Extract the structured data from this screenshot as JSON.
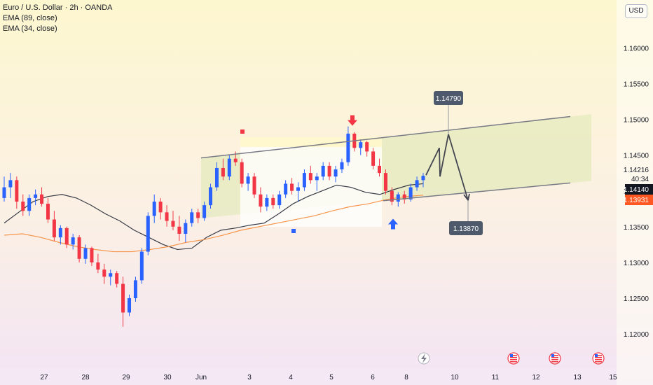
{
  "legend": {
    "title": "Euro / U.S. Dollar · 2h · OANDA",
    "ema_slow": "EMA (89, close)",
    "ema_fast": "EMA (34, close)"
  },
  "currency_button": "USD",
  "colors": {
    "up": "#2962ff",
    "down": "#f23645",
    "ema_slow": "#363a45",
    "ema_fast": "#f7954a",
    "channel_line": "#787b86",
    "callout": "#4e5a6b",
    "price_tag": "#131722",
    "ema_tag": "#ff5722"
  },
  "chart_data": {
    "type": "candlestick",
    "x_tick_labels": [
      "27",
      "28",
      "29",
      "30",
      "Jun",
      "3",
      "4",
      "5",
      "6",
      "8",
      "10",
      "11",
      "12",
      "13",
      "15"
    ],
    "y_ticks": [
      "1.16000",
      "1.15500",
      "1.15000",
      "1.14500",
      "1.14000",
      "1.13500",
      "1.13000",
      "1.12500",
      "1.12000"
    ],
    "ylim": [
      1.1158,
      1.1657
    ],
    "ohlc": [
      [
        1.139,
        1.142,
        1.1385,
        1.1405
      ],
      [
        1.1405,
        1.1425,
        1.139,
        1.1415
      ],
      [
        1.1415,
        1.142,
        1.1375,
        1.1385
      ],
      [
        1.1385,
        1.1395,
        1.1365,
        1.1372
      ],
      [
        1.1372,
        1.1395,
        1.1365,
        1.139
      ],
      [
        1.139,
        1.1402,
        1.138,
        1.1395
      ],
      [
        1.1395,
        1.1405,
        1.1378,
        1.1382
      ],
      [
        1.1382,
        1.139,
        1.1355,
        1.136
      ],
      [
        1.136,
        1.1372,
        1.133,
        1.1335
      ],
      [
        1.1335,
        1.1352,
        1.1325,
        1.1348
      ],
      [
        1.1348,
        1.135,
        1.132,
        1.1325
      ],
      [
        1.1325,
        1.134,
        1.1318,
        1.1335
      ],
      [
        1.1335,
        1.1338,
        1.13,
        1.1305
      ],
      [
        1.1305,
        1.1325,
        1.1298,
        1.132
      ],
      [
        1.132,
        1.1322,
        1.1295,
        1.13
      ],
      [
        1.13,
        1.1312,
        1.1285,
        1.129
      ],
      [
        1.129,
        1.1298,
        1.127,
        1.128
      ],
      [
        1.128,
        1.129,
        1.1268,
        1.1285
      ],
      [
        1.1285,
        1.1288,
        1.1265,
        1.127
      ],
      [
        1.127,
        1.128,
        1.121,
        1.123
      ],
      [
        1.123,
        1.1255,
        1.1225,
        1.125
      ],
      [
        1.125,
        1.128,
        1.1245,
        1.1275
      ],
      [
        1.1275,
        1.132,
        1.127,
        1.1315
      ],
      [
        1.1315,
        1.137,
        1.131,
        1.1365
      ],
      [
        1.1365,
        1.1395,
        1.1355,
        1.1385
      ],
      [
        1.1385,
        1.139,
        1.136,
        1.137
      ],
      [
        1.137,
        1.138,
        1.135,
        1.1358
      ],
      [
        1.1358,
        1.1372,
        1.1345,
        1.135
      ],
      [
        1.135,
        1.1365,
        1.133,
        1.134
      ],
      [
        1.134,
        1.136,
        1.1328,
        1.1355
      ],
      [
        1.1355,
        1.1375,
        1.135,
        1.137
      ],
      [
        1.137,
        1.1375,
        1.1355,
        1.1362
      ],
      [
        1.1362,
        1.1385,
        1.1358,
        1.138
      ],
      [
        1.138,
        1.141,
        1.1375,
        1.1405
      ],
      [
        1.1405,
        1.144,
        1.14,
        1.1432
      ],
      [
        1.1432,
        1.1445,
        1.1415,
        1.142
      ],
      [
        1.142,
        1.145,
        1.1415,
        1.1445
      ],
      [
        1.1445,
        1.1455,
        1.1435,
        1.144
      ],
      [
        1.144,
        1.1445,
        1.1405,
        1.141
      ],
      [
        1.141,
        1.1425,
        1.14,
        1.142
      ],
      [
        1.142,
        1.1425,
        1.139,
        1.1395
      ],
      [
        1.1395,
        1.1405,
        1.137,
        1.1378
      ],
      [
        1.1378,
        1.1395,
        1.1372,
        1.139
      ],
      [
        1.139,
        1.1395,
        1.1375,
        1.138
      ],
      [
        1.138,
        1.14,
        1.1375,
        1.1395
      ],
      [
        1.1395,
        1.1415,
        1.139,
        1.141
      ],
      [
        1.141,
        1.1418,
        1.1395,
        1.14
      ],
      [
        1.14,
        1.1412,
        1.1385,
        1.1405
      ],
      [
        1.1405,
        1.143,
        1.14,
        1.1425
      ],
      [
        1.1425,
        1.1435,
        1.141,
        1.1415
      ],
      [
        1.1415,
        1.1425,
        1.14,
        1.142
      ],
      [
        1.142,
        1.144,
        1.1415,
        1.1435
      ],
      [
        1.1435,
        1.144,
        1.1415,
        1.142
      ],
      [
        1.142,
        1.1435,
        1.1412,
        1.143
      ],
      [
        1.143,
        1.1445,
        1.1425,
        1.144
      ],
      [
        1.144,
        1.149,
        1.1435,
        1.148
      ],
      [
        1.148,
        1.1482,
        1.1455,
        1.146
      ],
      [
        1.146,
        1.1472,
        1.145,
        1.1468
      ],
      [
        1.1468,
        1.147,
        1.1448,
        1.1455
      ],
      [
        1.1455,
        1.146,
        1.143,
        1.1435
      ],
      [
        1.1435,
        1.1445,
        1.142,
        1.1425
      ],
      [
        1.1425,
        1.143,
        1.1395,
        1.14
      ],
      [
        1.14,
        1.1405,
        1.138,
        1.1385
      ],
      [
        1.1385,
        1.1398,
        1.1378,
        1.1395
      ],
      [
        1.1395,
        1.14,
        1.1382,
        1.1388
      ],
      [
        1.1388,
        1.141,
        1.1385,
        1.1405
      ],
      [
        1.1405,
        1.142,
        1.14,
        1.1415
      ],
      [
        1.1415,
        1.1425,
        1.1405,
        1.1421
      ]
    ],
    "ema_89": [
      1.1355,
      1.137,
      1.1385,
      1.1392,
      1.1395,
      1.139,
      1.138,
      1.1368,
      1.1358,
      1.1345,
      1.1335,
      1.1325,
      1.1318,
      1.132,
      1.1335,
      1.1345,
      1.1348,
      1.1352,
      1.1355,
      1.1368,
      1.1382,
      1.1392,
      1.14,
      1.1408,
      1.1405,
      1.1398,
      1.1395,
      1.1402,
      1.1408,
      1.141
    ],
    "ema_34": [
      1.1338,
      1.134,
      1.1335,
      1.1328,
      1.1322,
      1.1318,
      1.1315,
      1.1315,
      1.1318,
      1.1322,
      1.1328,
      1.1332,
      1.1338,
      1.1345,
      1.135,
      1.1355,
      1.136,
      1.1365,
      1.1372,
      1.1378,
      1.1382,
      1.1388,
      1.1392,
      1.1394
    ],
    "channel_upper": {
      "from": [
        1.1446,
        "Jun"
      ],
      "to": [
        1.1505,
        "13"
      ]
    },
    "channel_lower": {
      "from": [
        1.1362,
        "Jun"
      ],
      "to": [
        1.1412,
        "13"
      ]
    },
    "projection_path": [
      1.1422,
      1.146,
      1.142,
      1.1479,
      1.1387
    ],
    "targets": [
      {
        "label": "1.14790",
        "value": 1.1479
      },
      {
        "label": "1.13870",
        "value": 1.1387
      }
    ],
    "price_scale_tags": [
      {
        "label": "1.14216",
        "value": 1.14216,
        "style": "text"
      },
      {
        "label": "40:34",
        "value": 1.141,
        "style": "text"
      },
      {
        "label": "1.14140",
        "value": 1.1414,
        "style": "dark"
      },
      {
        "label": "1.13931",
        "value": 1.13931,
        "style": "orange"
      }
    ],
    "arrows": [
      {
        "direction": "down",
        "value": 1.1492
      },
      {
        "direction": "up",
        "value": 1.136
      }
    ]
  }
}
